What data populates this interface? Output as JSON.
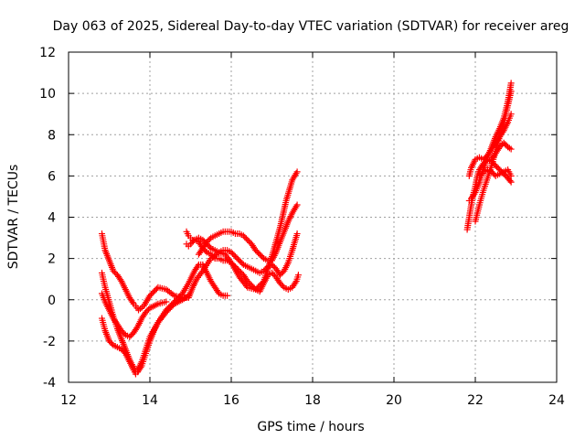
{
  "chart_data": {
    "type": "scatter",
    "title": "Day 063 of 2025, Sidereal Day-to-day VTEC variation (SDTVAR) for receiver areg",
    "xlabel": "GPS time / hours",
    "ylabel": "SDTVAR / TECUs",
    "xlim": [
      12,
      24
    ],
    "ylim": [
      -4,
      12
    ],
    "xticks": [
      12,
      14,
      16,
      18,
      20,
      22,
      24
    ],
    "yticks": [
      -4,
      -2,
      0,
      2,
      4,
      6,
      8,
      10,
      12
    ],
    "grid": true,
    "marker": "+",
    "color": "#ff0000",
    "series": [
      {
        "x": [
          12.82,
          12.9,
          13.0,
          13.1,
          13.2,
          13.3,
          13.4,
          13.5,
          13.6,
          13.65,
          13.72,
          13.85,
          14.0,
          14.2,
          14.4,
          14.6,
          14.8,
          14.95,
          15.05,
          15.15,
          15.3,
          15.5,
          15.7,
          15.85,
          16.0,
          16.2,
          16.4,
          16.6,
          16.8,
          17.0,
          17.2,
          17.35,
          17.5,
          17.62
        ],
        "y": [
          3.2,
          2.4,
          1.9,
          1.4,
          1.2,
          0.9,
          0.5,
          0.1,
          -0.2,
          -0.3,
          -0.5,
          -0.3,
          0.2,
          0.6,
          0.5,
          0.2,
          0.1,
          0.1,
          0.6,
          1.0,
          1.4,
          2.0,
          2.3,
          2.2,
          1.8,
          1.1,
          0.6,
          0.5,
          0.9,
          2.1,
          3.5,
          4.8,
          5.8,
          6.2
        ]
      },
      {
        "x": [
          12.82,
          12.9,
          13.0,
          13.1,
          13.2,
          13.3,
          13.4,
          13.5,
          13.6,
          13.65,
          13.7,
          13.8,
          13.9,
          14.0,
          14.2,
          14.4,
          14.6,
          14.8,
          14.95,
          15.1,
          15.2,
          15.3,
          15.4,
          15.5,
          15.6,
          15.7,
          15.8,
          15.9
        ],
        "y": [
          1.3,
          0.6,
          -0.1,
          -0.8,
          -1.4,
          -1.9,
          -2.4,
          -2.9,
          -3.3,
          -3.5,
          -3.4,
          -3.0,
          -2.4,
          -1.8,
          -1.1,
          -0.5,
          -0.1,
          0.3,
          0.8,
          1.4,
          1.7,
          1.7,
          1.3,
          0.9,
          0.6,
          0.3,
          0.2,
          0.2
        ]
      },
      {
        "x": [
          12.82,
          12.9,
          13.0,
          13.1,
          13.2,
          13.3,
          13.4,
          13.5,
          13.6,
          13.65,
          13.7,
          13.8,
          13.9,
          14.0,
          14.1,
          14.2,
          14.4,
          14.6,
          14.8,
          14.95
        ],
        "y": [
          -0.9,
          -1.5,
          -2.0,
          -2.2,
          -2.3,
          -2.4,
          -2.6,
          -3.0,
          -3.4,
          -3.6,
          -3.5,
          -3.2,
          -2.6,
          -2.0,
          -1.5,
          -1.1,
          -0.6,
          -0.2,
          0.0,
          0.2
        ]
      },
      {
        "x": [
          12.82,
          12.9,
          13.0,
          13.1,
          13.2,
          13.3,
          13.4,
          13.5,
          13.6,
          13.7,
          13.8,
          13.9,
          14.0,
          14.2,
          14.4
        ],
        "y": [
          0.3,
          -0.1,
          -0.5,
          -0.9,
          -1.2,
          -1.5,
          -1.7,
          -1.8,
          -1.6,
          -1.3,
          -0.9,
          -0.6,
          -0.4,
          -0.2,
          -0.1
        ]
      },
      {
        "x": [
          14.9,
          14.95,
          15.0,
          15.05,
          15.1,
          15.2,
          15.3,
          15.4,
          15.5,
          15.6,
          15.7,
          15.8,
          15.9,
          16.0,
          16.1,
          16.2,
          16.3,
          16.4,
          16.5,
          16.6,
          16.7,
          16.8,
          16.9,
          17.0,
          17.1,
          17.2,
          17.3,
          17.4,
          17.5,
          17.6,
          17.65
        ],
        "y": [
          3.3,
          3.1,
          3.0,
          2.9,
          2.9,
          2.8,
          2.5,
          2.3,
          2.2,
          2.0,
          2.0,
          1.9,
          1.9,
          1.8,
          1.6,
          1.4,
          1.2,
          0.9,
          0.7,
          0.5,
          0.4,
          0.8,
          1.2,
          1.3,
          1.1,
          0.8,
          0.6,
          0.5,
          0.6,
          0.9,
          1.2
        ]
      },
      {
        "x": [
          14.9,
          14.95,
          15.0,
          15.1,
          15.2,
          15.3,
          15.4,
          15.5,
          15.6,
          15.7,
          15.8,
          15.9,
          16.0,
          16.1,
          16.2,
          16.3,
          16.4,
          16.5,
          16.6,
          16.7,
          16.8,
          16.9,
          17.0,
          17.1,
          17.2,
          17.3,
          17.4,
          17.5,
          17.62
        ],
        "y": [
          2.7,
          2.6,
          2.7,
          2.9,
          3.0,
          2.9,
          2.7,
          2.5,
          2.4,
          2.3,
          2.4,
          2.4,
          2.3,
          2.1,
          1.9,
          1.7,
          1.6,
          1.5,
          1.4,
          1.3,
          1.4,
          1.6,
          1.7,
          1.5,
          1.2,
          1.4,
          1.8,
          2.4,
          3.2
        ]
      },
      {
        "x": [
          15.2,
          15.3,
          15.4,
          15.5,
          15.6,
          15.7,
          15.8,
          15.9,
          16.0,
          16.1,
          16.2,
          16.3,
          16.4,
          16.5,
          16.6,
          16.7,
          16.8,
          16.9,
          17.0,
          17.1,
          17.2,
          17.3,
          17.4,
          17.5,
          17.62
        ],
        "y": [
          2.2,
          2.5,
          2.8,
          3.0,
          3.1,
          3.2,
          3.3,
          3.3,
          3.3,
          3.2,
          3.2,
          3.1,
          2.9,
          2.7,
          2.4,
          2.2,
          2.0,
          1.9,
          1.9,
          2.3,
          2.8,
          3.3,
          3.8,
          4.2,
          4.6
        ]
      },
      {
        "x": [
          21.8,
          21.85,
          21.9,
          21.95,
          22.0,
          22.05,
          22.1,
          22.2,
          22.3,
          22.4,
          22.5,
          22.6,
          22.7,
          22.8,
          22.88
        ],
        "y": [
          3.4,
          4.0,
          4.6,
          5.1,
          5.5,
          6.0,
          6.3,
          6.6,
          6.8,
          6.7,
          6.5,
          6.3,
          6.1,
          5.9,
          5.7
        ]
      },
      {
        "x": [
          21.85,
          21.9,
          22.0,
          22.1,
          22.2,
          22.3,
          22.4,
          22.5,
          22.6,
          22.7,
          22.8,
          22.88
        ],
        "y": [
          6.0,
          6.4,
          6.8,
          6.9,
          6.8,
          7.0,
          7.3,
          7.6,
          7.9,
          8.2,
          8.6,
          9.0
        ]
      },
      {
        "x": [
          22.0,
          22.05,
          22.1,
          22.2,
          22.3,
          22.4,
          22.5,
          22.6,
          22.7,
          22.8,
          22.88
        ],
        "y": [
          3.8,
          4.2,
          4.6,
          5.3,
          5.9,
          6.5,
          7.2,
          7.9,
          8.6,
          9.4,
          10.1
        ]
      },
      {
        "x": [
          21.85,
          21.9,
          22.0,
          22.1,
          22.2,
          22.3,
          22.4,
          22.5,
          22.6,
          22.7,
          22.8,
          22.88
        ],
        "y": [
          4.8,
          4.9,
          5.2,
          5.7,
          6.3,
          6.9,
          7.4,
          7.9,
          8.3,
          8.8,
          9.6,
          10.5
        ]
      },
      {
        "x": [
          22.1,
          22.2,
          22.3,
          22.4,
          22.5,
          22.6,
          22.7,
          22.8,
          22.88
        ],
        "y": [
          6.0,
          6.2,
          6.3,
          6.2,
          6.0,
          6.1,
          6.2,
          6.3,
          6.0
        ]
      },
      {
        "x": [
          22.4,
          22.5,
          22.6,
          22.7,
          22.8,
          22.88
        ],
        "y": [
          6.8,
          7.1,
          7.4,
          7.6,
          7.4,
          7.3
        ]
      }
    ]
  }
}
